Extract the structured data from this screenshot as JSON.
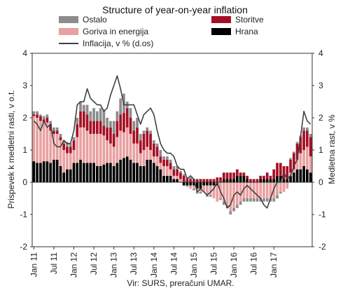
{
  "chart_data": {
    "type": "bar",
    "title": "Structure of year-on-year inflation",
    "ylabel": "Prispevek k medletni rasti, v o.t.",
    "y2label": "Medletna rast, v %",
    "ylim": [
      -2,
      4
    ],
    "y2lim": [
      -2,
      4
    ],
    "yticks": [
      -2,
      -1,
      0,
      1,
      2,
      3,
      4
    ],
    "x_labels": [
      "Jan 11",
      "Jul 11",
      "Jan 12",
      "Jul 12",
      "Jan 13",
      "Jul 13",
      "Jan 14",
      "Jul 14",
      "Jan 15",
      "Jul 15",
      "Jan 16",
      "Jul 16",
      "Jan 17"
    ],
    "source": "Vir: SURS, preračuni UMAR.",
    "start": "2011-01",
    "stacked": true,
    "series": [
      {
        "name": "Ostalo",
        "color": "#8c8c8c",
        "values": [
          0.1,
          0.1,
          0.05,
          0.1,
          0.1,
          0.1,
          0.1,
          0.1,
          0.1,
          0.1,
          0.15,
          0.1,
          0.1,
          0.2,
          0.3,
          0.2,
          0.3,
          0.3,
          0.4,
          0.3,
          0.4,
          0.5,
          0.3,
          0.2,
          0.4,
          0.3,
          0.5,
          0.6,
          0.2,
          0.3,
          0.3,
          0.3,
          0.2,
          0.1,
          0.1,
          0.1,
          0.1,
          0.1,
          0.2,
          0.1,
          0.1,
          0.1,
          0.1,
          0.1,
          0.05,
          0.05,
          0.05,
          0.05,
          -0.05,
          -0.05,
          -0.05,
          0.0,
          -0.05,
          -0.05,
          0.0,
          0.0,
          -0.05,
          -0.1,
          -0.1,
          -0.1,
          -0.1,
          -0.1,
          -0.1,
          -0.1,
          -0.1,
          -0.1,
          -0.1,
          -0.1,
          -0.1,
          -0.1,
          -0.1,
          -0.1,
          -0.1,
          -0.1,
          -0.05,
          0.0,
          0.0,
          0.05,
          0.05,
          0.05,
          0.05,
          0.1,
          0.1,
          0.1
        ]
      },
      {
        "name": "Storitve",
        "color": "#a50f24",
        "values": [
          0.05,
          0.1,
          0.15,
          0.1,
          0.15,
          0.2,
          0.1,
          0.1,
          0.1,
          0.2,
          0.2,
          0.2,
          0.3,
          0.4,
          0.5,
          0.5,
          0.5,
          0.4,
          0.4,
          0.4,
          0.4,
          0.3,
          0.4,
          0.5,
          0.4,
          0.5,
          0.5,
          0.6,
          0.6,
          0.5,
          0.4,
          0.5,
          0.4,
          0.5,
          0.5,
          0.5,
          0.4,
          0.3,
          0.2,
          0.2,
          0.2,
          0.2,
          0.2,
          0.2,
          0.2,
          0.2,
          0.1,
          0.1,
          0.1,
          0.1,
          0.1,
          0.1,
          0.1,
          0.1,
          0.1,
          0.15,
          0.15,
          0.2,
          0.2,
          0.2,
          0.2,
          0.2,
          0.1,
          0.1,
          0.1,
          0.1,
          0.1,
          0.1,
          0.1,
          0.1,
          0.2,
          0.1,
          0.3,
          0.4,
          0.4,
          0.4,
          0.4,
          0.4,
          0.5,
          0.5,
          0.5,
          0.6,
          0.5,
          0.6
        ]
      },
      {
        "name": "Goriva in energija",
        "color": "#e9a0a0",
        "values": [
          1.4,
          1.4,
          1.3,
          1.2,
          1.2,
          1.0,
          0.8,
          0.8,
          0.8,
          0.7,
          0.5,
          0.5,
          0.4,
          0.8,
          1.0,
          1.1,
          1.0,
          0.9,
          0.9,
          1.0,
          1.0,
          0.9,
          0.7,
          0.6,
          0.6,
          0.8,
          0.9,
          0.8,
          0.9,
          0.8,
          0.6,
          0.6,
          0.4,
          0.5,
          0.4,
          0.3,
          0.2,
          0.3,
          0.2,
          0.3,
          0.3,
          0.2,
          0.1,
          0.1,
          0.1,
          0.0,
          -0.05,
          -0.1,
          -0.1,
          -0.1,
          -0.1,
          -0.2,
          -0.3,
          -0.3,
          -0.4,
          -0.5,
          -0.5,
          -0.6,
          -0.7,
          -0.9,
          -0.8,
          -0.7,
          -0.6,
          -0.5,
          -0.5,
          -0.5,
          -0.5,
          -0.5,
          -0.5,
          -0.5,
          -0.5,
          -0.5,
          -0.5,
          -0.4,
          -0.3,
          -0.3,
          -0.2,
          0.1,
          0.1,
          0.3,
          0.5,
          0.5,
          0.7,
          0.5
        ]
      },
      {
        "name": "Hrana",
        "color": "#000000",
        "values": [
          0.65,
          0.6,
          0.6,
          0.65,
          0.65,
          0.6,
          0.7,
          0.7,
          0.5,
          0.3,
          0.4,
          0.4,
          0.6,
          0.6,
          0.7,
          0.6,
          0.6,
          0.6,
          0.6,
          0.5,
          0.5,
          0.55,
          0.6,
          0.6,
          0.5,
          0.6,
          0.7,
          0.75,
          0.8,
          0.7,
          0.6,
          0.6,
          0.5,
          0.5,
          0.7,
          0.7,
          0.6,
          0.5,
          0.4,
          0.2,
          0.2,
          0.2,
          0.1,
          0.1,
          0.0,
          -0.1,
          -0.1,
          -0.1,
          -0.1,
          -0.2,
          -0.2,
          -0.1,
          -0.1,
          -0.1,
          -0.1,
          -0.1,
          0.0,
          0.1,
          0.1,
          0.1,
          0.1,
          0.2,
          0.2,
          0.2,
          0.1,
          0.0,
          0.0,
          0.0,
          0.1,
          0.1,
          0.1,
          0.1,
          0.1,
          0.2,
          0.2,
          0.1,
          0.1,
          0.2,
          0.3,
          0.4,
          0.4,
          0.5,
          0.4,
          0.3
        ]
      },
      {
        "name": "Inflacija, v % (d.os)",
        "color": "#404040",
        "line": true,
        "values": [
          1.9,
          1.8,
          1.6,
          1.9,
          1.7,
          1.8,
          1.2,
          1.1,
          1.1,
          1.3,
          1.2,
          1.2,
          1.6,
          2.4,
          2.5,
          2.5,
          2.9,
          2.6,
          2.5,
          2.4,
          2.4,
          2.2,
          2.3,
          2.7,
          3.0,
          3.3,
          2.9,
          2.4,
          2.4,
          2.4,
          2.4,
          2.1,
          1.8,
          2.1,
          2.2,
          2.3,
          2.1,
          1.6,
          1.2,
          1.0,
          0.9,
          0.9,
          0.8,
          0.5,
          0.4,
          0.4,
          0.1,
          0.2,
          0.1,
          -0.3,
          -0.2,
          -0.3,
          -0.4,
          -0.3,
          -0.2,
          0.0,
          -0.3,
          -0.5,
          -0.8,
          -0.7,
          -0.4,
          -0.3,
          -0.4,
          -0.2,
          -0.1,
          -0.2,
          -0.3,
          -0.4,
          -0.5,
          -0.7,
          -0.8,
          -0.5,
          -0.2,
          0.0,
          0.0,
          0.3,
          0.1,
          0.2,
          0.5,
          0.7,
          1.4,
          2.2,
          1.9,
          1.8
        ]
      }
    ],
    "legend": [
      {
        "label": "Ostalo",
        "color": "#8c8c8c",
        "kind": "box"
      },
      {
        "label": "Storitve",
        "color": "#a50f24",
        "kind": "box"
      },
      {
        "label": "Goriva in energija",
        "color": "#e9a0a0",
        "kind": "box"
      },
      {
        "label": "Hrana",
        "color": "#000000",
        "kind": "box"
      },
      {
        "label": "Inflacija, v % (d.os)",
        "color": "#404040",
        "kind": "line"
      }
    ]
  }
}
